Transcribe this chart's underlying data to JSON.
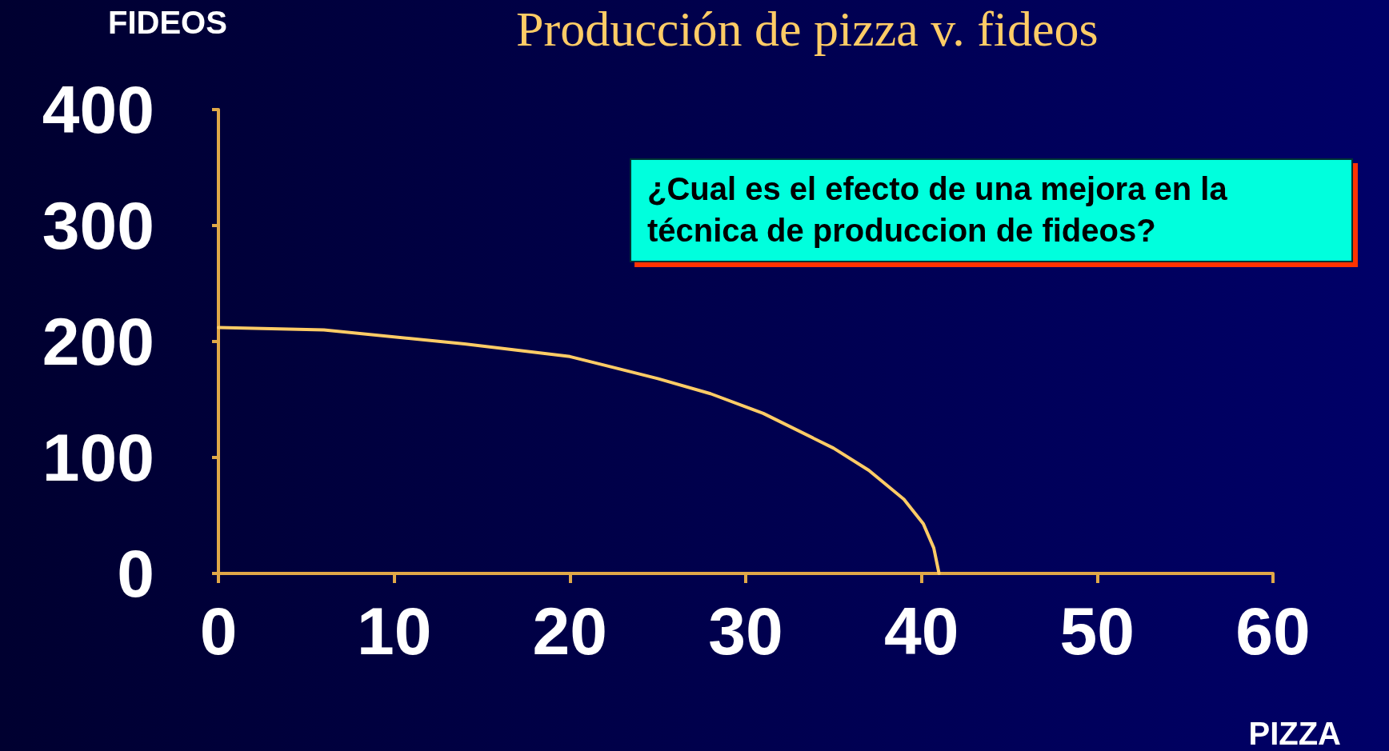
{
  "chart_data": {
    "type": "line",
    "title": "Producción de pizza v. fideos",
    "xlabel": "PIZZA",
    "ylabel": "FIDEOS",
    "annotations": [
      "¿Cual es el efecto de una mejora en la técnica de produccion de fideos?"
    ],
    "x": [
      0,
      6,
      14,
      20,
      25,
      28,
      31,
      35,
      37,
      39,
      40.1,
      40.7,
      41
    ],
    "series": [
      {
        "color": "#ffcc66",
        "values": [
          212,
          210,
          198,
          187,
          168,
          155,
          138,
          108,
          89,
          64,
          43,
          22,
          0
        ]
      }
    ],
    "xlim": [
      0,
      60
    ],
    "xticks": [
      0,
      10,
      20,
      30,
      40,
      50,
      60
    ],
    "ylim": [
      0,
      400
    ],
    "yticks": [
      0,
      100,
      200,
      300,
      400
    ],
    "grid": false,
    "marker": "none",
    "line_style": "solid"
  }
}
